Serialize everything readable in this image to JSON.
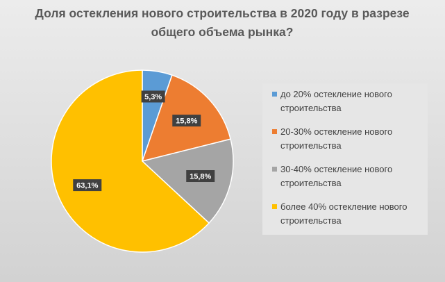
{
  "chart_data": {
    "type": "pie",
    "title": "Доля остекления нового строительства в 2020 году в разрезе общего объема рынка?",
    "slices": [
      {
        "label": "до 20% остекление нового строительства",
        "value": 5.3,
        "value_label": "5,3%",
        "color": "#5b9bd5"
      },
      {
        "label": "20-30% остекление нового строительства",
        "value": 15.8,
        "value_label": "15,8%",
        "color": "#ed7d31"
      },
      {
        "label": "30-40% остекление нового строительства",
        "value": 15.8,
        "value_label": "15,8%",
        "color": "#a5a5a5"
      },
      {
        "label": "более 40% остекление нового строительства",
        "value": 63.1,
        "value_label": "63,1%",
        "color": "#ffc000"
      }
    ],
    "legend_position": "right",
    "start_angle_deg": 0,
    "direction": "clockwise"
  }
}
